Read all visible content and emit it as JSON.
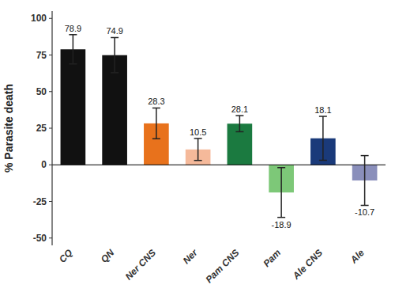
{
  "chart_data": {
    "type": "bar",
    "categories": [
      "CQ",
      "QN",
      "Ner CNS",
      "Ner",
      "Pam CNS",
      "Pam",
      "Ale CNS",
      "Ale"
    ],
    "values": [
      78.9,
      74.9,
      28.3,
      10.5,
      28.1,
      -18.9,
      18.1,
      -10.7
    ],
    "errors": [
      10.0,
      12.0,
      10.5,
      7.5,
      5.5,
      17.0,
      15.0,
      17.0
    ],
    "colors": [
      "#111111",
      "#111111",
      "#E8721C",
      "#F5B99A",
      "#1B7A40",
      "#7DC878",
      "#1A3A7A",
      "#8A8FBB"
    ],
    "ylabel": "% Parasite death",
    "ylim": [
      -55,
      105
    ],
    "yticks": [
      -50,
      -25,
      0,
      25,
      50,
      75,
      100
    ],
    "grid": false,
    "data_labels": true
  }
}
